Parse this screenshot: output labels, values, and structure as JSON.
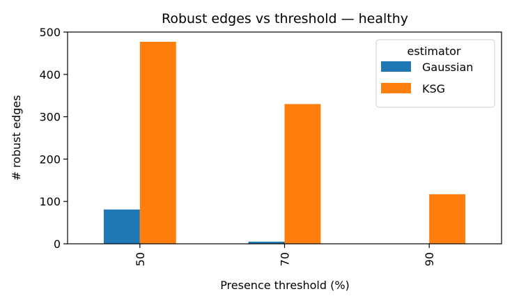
{
  "chart_data": {
    "type": "bar",
    "title": "Robust edges vs threshold — healthy",
    "xlabel": "Presence threshold (%)",
    "ylabel": "# robust edges",
    "categories": [
      "50",
      "70",
      "90"
    ],
    "series": [
      {
        "name": "Gaussian",
        "values": [
          81,
          5,
          0
        ],
        "color": "#1f77b4"
      },
      {
        "name": "KSG",
        "values": [
          477,
          330,
          117
        ],
        "color": "#ff7f0e"
      }
    ],
    "ylim": [
      0,
      500
    ],
    "yticks": [
      0,
      100,
      200,
      300,
      400,
      500
    ],
    "grid": false,
    "legend": {
      "title": "estimator",
      "location": "top-right"
    }
  }
}
